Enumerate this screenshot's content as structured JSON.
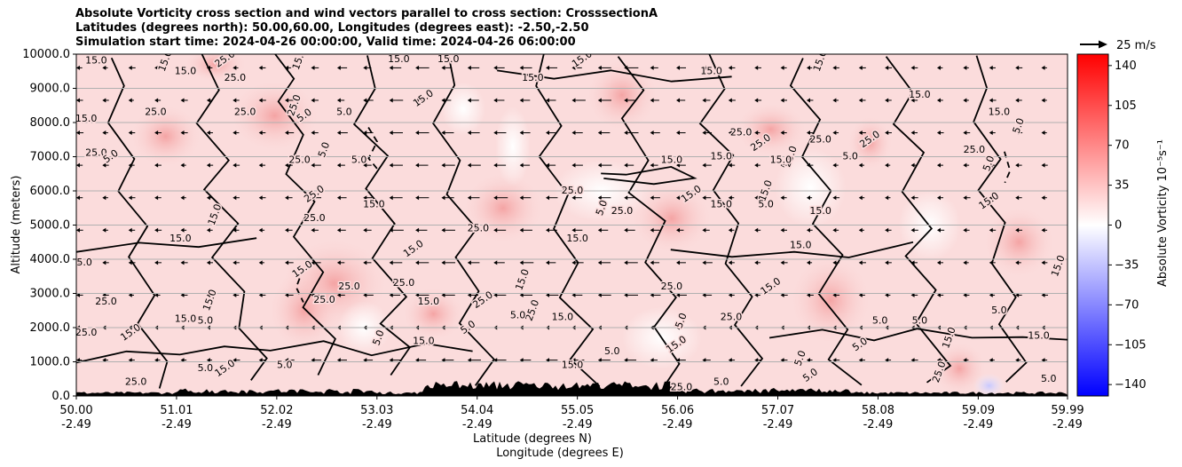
{
  "title_lines": [
    "Absolute Vorticity cross section and wind vectors parallel to cross section: CrosssectionA",
    "Latitudes (degrees north): 50.00,60.00, Longitudes (degrees east): -2.50,-2.50",
    "Simulation start time: 2024-04-26 00:00:00, Valid time: 2024-04-26 06:00:00"
  ],
  "chart_data": {
    "type": "heatmap",
    "subtype": "cross-section contourf with contour lines and quiver",
    "ylabel": "Altitude (meters)",
    "xlabel_lines": [
      "Latitude (degrees N)",
      "Longitude (degrees E)"
    ],
    "ylim": [
      0,
      10000
    ],
    "y_ticks": [
      "0.0",
      "1000.0",
      "2000.0",
      "3000.0",
      "4000.0",
      "5000.0",
      "6000.0",
      "7000.0",
      "8000.0",
      "9000.0",
      "10000.0"
    ],
    "y_tick_values": [
      0,
      1000,
      2000,
      3000,
      4000,
      5000,
      6000,
      7000,
      8000,
      9000,
      10000
    ],
    "xlim": [
      50.0,
      59.99
    ],
    "x_tick_values": [
      50.0,
      51.01,
      52.02,
      53.03,
      54.04,
      55.05,
      56.06,
      57.07,
      58.08,
      59.09,
      59.99
    ],
    "x_ticks_lat": [
      "50.00",
      "51.01",
      "52.02",
      "53.03",
      "54.04",
      "55.05",
      "56.06",
      "57.07",
      "58.08",
      "59.09",
      "59.99"
    ],
    "x_ticks_lon": [
      "-2.49",
      "-2.49",
      "-2.49",
      "-2.49",
      "-2.49",
      "-2.49",
      "-2.49",
      "-2.49",
      "-2.49",
      "-2.49",
      "-2.49"
    ],
    "grid": "horizontal",
    "colorbar": {
      "label": "Absolute Vorticity 10⁻⁵s⁻¹",
      "range": [
        -150,
        150
      ],
      "ticks": [
        "140",
        "105",
        "70",
        "35",
        "0",
        "−35",
        "−70",
        "−105",
        "−140"
      ],
      "tick_values": [
        140,
        105,
        70,
        35,
        0,
        -35,
        -70,
        -105,
        -140
      ],
      "colors": {
        "min": "#0000ff",
        "mid": "#ffffff",
        "max": "#ff0000"
      }
    },
    "quiver_key": {
      "label": "25 m/s",
      "speed": 25
    },
    "contour_levels": [
      5.0,
      15.0,
      25.0
    ],
    "contour_labels": [
      {
        "text": "15.0",
        "x": 50.2,
        "y": 9800
      },
      {
        "text": "15.0",
        "x": 50.9,
        "y": 9800
      },
      {
        "text": "15.0",
        "x": 51.1,
        "y": 9500
      },
      {
        "text": "25.0",
        "x": 51.5,
        "y": 9850
      },
      {
        "text": "25.0",
        "x": 51.6,
        "y": 9300
      },
      {
        "text": "15.0",
        "x": 52.25,
        "y": 9850
      },
      {
        "text": "15.0",
        "x": 53.25,
        "y": 9850
      },
      {
        "text": "15.0",
        "x": 53.75,
        "y": 9850
      },
      {
        "text": "15.0",
        "x": 55.1,
        "y": 9850
      },
      {
        "text": "15.0",
        "x": 57.5,
        "y": 9800
      },
      {
        "text": "15.0",
        "x": 54.6,
        "y": 9300
      },
      {
        "text": "15.0",
        "x": 56.4,
        "y": 9500
      },
      {
        "text": "15.0",
        "x": 58.5,
        "y": 8800
      },
      {
        "text": "15.0",
        "x": 53.5,
        "y": 8700
      },
      {
        "text": "15.0",
        "x": 50.1,
        "y": 8100
      },
      {
        "text": "25.0",
        "x": 50.8,
        "y": 8300
      },
      {
        "text": "25.0",
        "x": 51.7,
        "y": 8300
      },
      {
        "text": "25.0",
        "x": 52.2,
        "y": 8500
      },
      {
        "text": "5.0",
        "x": 52.3,
        "y": 8200
      },
      {
        "text": "5.0",
        "x": 52.7,
        "y": 8300
      },
      {
        "text": "15.0",
        "x": 59.3,
        "y": 8300
      },
      {
        "text": "5.0",
        "x": 59.5,
        "y": 7900
      },
      {
        "text": "25.0",
        "x": 50.2,
        "y": 7100
      },
      {
        "text": "5.0",
        "x": 50.35,
        "y": 7000
      },
      {
        "text": "25.0",
        "x": 52.25,
        "y": 6900
      },
      {
        "text": "5.0",
        "x": 52.5,
        "y": 7200
      },
      {
        "text": "5.0",
        "x": 52.85,
        "y": 6900
      },
      {
        "text": "25.0",
        "x": 56.7,
        "y": 7700
      },
      {
        "text": "25.0",
        "x": 56.9,
        "y": 7400
      },
      {
        "text": "25.0",
        "x": 57.2,
        "y": 7000
      },
      {
        "text": "15.0",
        "x": 57.1,
        "y": 6900
      },
      {
        "text": "15.0",
        "x": 56.5,
        "y": 7000
      },
      {
        "text": "25.0",
        "x": 57.5,
        "y": 7500
      },
      {
        "text": "25.0",
        "x": 58.0,
        "y": 7500
      },
      {
        "text": "15.0",
        "x": 56.0,
        "y": 6900
      },
      {
        "text": "5.0",
        "x": 57.8,
        "y": 7000
      },
      {
        "text": "25.0",
        "x": 59.05,
        "y": 7200
      },
      {
        "text": "5.0",
        "x": 59.2,
        "y": 6800
      },
      {
        "text": "25.0",
        "x": 52.4,
        "y": 5900
      },
      {
        "text": "15.0",
        "x": 53.0,
        "y": 5600
      },
      {
        "text": "25.0",
        "x": 55.0,
        "y": 6000
      },
      {
        "text": "5.0",
        "x": 55.3,
        "y": 5500
      },
      {
        "text": "25.0",
        "x": 55.5,
        "y": 5400
      },
      {
        "text": "15.0",
        "x": 56.2,
        "y": 5900
      },
      {
        "text": "15.0",
        "x": 56.5,
        "y": 5600
      },
      {
        "text": "15.0",
        "x": 56.95,
        "y": 6000
      },
      {
        "text": "5.0",
        "x": 56.95,
        "y": 5600
      },
      {
        "text": "15.0",
        "x": 57.5,
        "y": 5400
      },
      {
        "text": "15.0",
        "x": 59.2,
        "y": 5700
      },
      {
        "text": "15.0",
        "x": 51.4,
        "y": 5300
      },
      {
        "text": "25.0",
        "x": 52.4,
        "y": 5200
      },
      {
        "text": "15.0",
        "x": 51.05,
        "y": 4600
      },
      {
        "text": "25.0",
        "x": 54.05,
        "y": 4900
      },
      {
        "text": "15.0",
        "x": 53.4,
        "y": 4300
      },
      {
        "text": "15.0",
        "x": 55.05,
        "y": 4600
      },
      {
        "text": "15.0",
        "x": 57.3,
        "y": 4400
      },
      {
        "text": "15.0",
        "x": 50.05,
        "y": 3900
      },
      {
        "text": "15.0",
        "x": 59.9,
        "y": 3800
      },
      {
        "text": "15.0",
        "x": 52.28,
        "y": 3700
      },
      {
        "text": "25.0",
        "x": 52.75,
        "y": 3200
      },
      {
        "text": "25.0",
        "x": 53.3,
        "y": 3300
      },
      {
        "text": "15.0",
        "x": 54.5,
        "y": 3400
      },
      {
        "text": "25.0",
        "x": 56.0,
        "y": 3200
      },
      {
        "text": "15.0",
        "x": 57.0,
        "y": 3200
      },
      {
        "text": "25.0",
        "x": 50.3,
        "y": 2750
      },
      {
        "text": "15.0",
        "x": 51.35,
        "y": 2800
      },
      {
        "text": "25.0",
        "x": 52.5,
        "y": 2800
      },
      {
        "text": "15.0",
        "x": 53.55,
        "y": 2750
      },
      {
        "text": "25.0",
        "x": 54.1,
        "y": 2800
      },
      {
        "text": "25.0",
        "x": 54.6,
        "y": 2500
      },
      {
        "text": "5.0",
        "x": 54.45,
        "y": 2350
      },
      {
        "text": "15.0",
        "x": 54.9,
        "y": 2300
      },
      {
        "text": "5.0",
        "x": 58.1,
        "y": 2200
      },
      {
        "text": "15.0",
        "x": 50.55,
        "y": 1850
      },
      {
        "text": "25.0",
        "x": 50.1,
        "y": 1850
      },
      {
        "text": "5.0",
        "x": 51.3,
        "y": 2200
      },
      {
        "text": "15.0",
        "x": 51.1,
        "y": 2250
      },
      {
        "text": "5.0",
        "x": 53.05,
        "y": 1700
      },
      {
        "text": "5.0",
        "x": 53.95,
        "y": 2000
      },
      {
        "text": "15.0",
        "x": 53.5,
        "y": 1600
      },
      {
        "text": "5.0",
        "x": 55.4,
        "y": 1300
      },
      {
        "text": "5.0",
        "x": 56.1,
        "y": 2200
      },
      {
        "text": "25.0",
        "x": 56.6,
        "y": 2300
      },
      {
        "text": "15.0",
        "x": 56.05,
        "y": 1500
      },
      {
        "text": "15.0",
        "x": 59.7,
        "y": 1750
      },
      {
        "text": "15.0",
        "x": 58.8,
        "y": 1700
      },
      {
        "text": "5.0",
        "x": 59.3,
        "y": 2500
      },
      {
        "text": "5.0",
        "x": 58.5,
        "y": 2200
      },
      {
        "text": "5.0",
        "x": 57.9,
        "y": 1500
      },
      {
        "text": "5.0",
        "x": 57.3,
        "y": 1100
      },
      {
        "text": "15.0",
        "x": 55.0,
        "y": 900
      },
      {
        "text": "5.0",
        "x": 52.1,
        "y": 900
      },
      {
        "text": "5.0",
        "x": 51.3,
        "y": 800
      },
      {
        "text": "15.0",
        "x": 51.5,
        "y": 800
      },
      {
        "text": "25.0",
        "x": 50.6,
        "y": 400
      },
      {
        "text": "25.0",
        "x": 56.1,
        "y": 250
      },
      {
        "text": "5.0",
        "x": 56.5,
        "y": 400
      },
      {
        "text": "25.0",
        "x": 58.7,
        "y": 700
      },
      {
        "text": "5.0",
        "x": 57.4,
        "y": 600
      },
      {
        "text": "5.0",
        "x": 59.8,
        "y": 500
      }
    ],
    "contour_lines_visible": true,
    "terrain_color": "#000000"
  }
}
